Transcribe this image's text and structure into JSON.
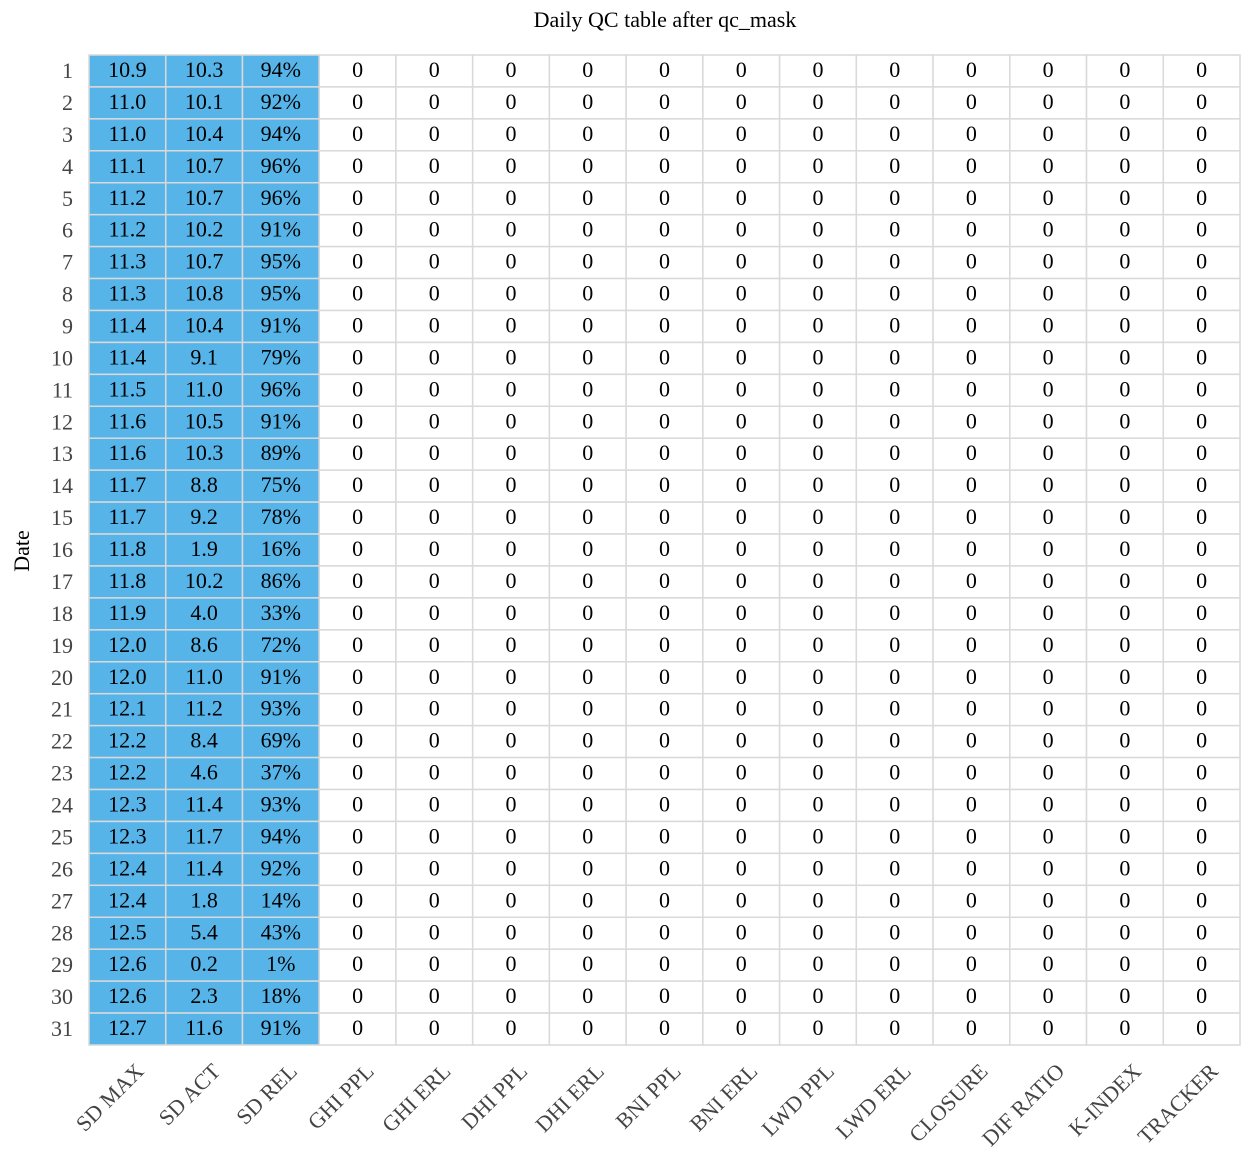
{
  "title": "Daily QC table after qc_mask",
  "y_label": "Date",
  "table": {
    "columns": [
      "SD MAX",
      "SD ACT",
      "SD REL",
      "GHI PPL",
      "GHI ERL",
      "DHI PPL",
      "DHI ERL",
      "BNI PPL",
      "BNI ERL",
      "LWD PPL",
      "LWD ERL",
      "CLOSURE",
      "DIF RATIO",
      "K-INDEX",
      "TRACKER"
    ],
    "rows": [
      {
        "label": 1,
        "cells": [
          "10.9",
          "10.3",
          "94%",
          0,
          0,
          0,
          0,
          0,
          0,
          0,
          0,
          0,
          0,
          0,
          0
        ]
      },
      {
        "label": 2,
        "cells": [
          "11.0",
          "10.1",
          "92%",
          0,
          0,
          0,
          0,
          0,
          0,
          0,
          0,
          0,
          0,
          0,
          0
        ]
      },
      {
        "label": 3,
        "cells": [
          "11.0",
          "10.4",
          "94%",
          0,
          0,
          0,
          0,
          0,
          0,
          0,
          0,
          0,
          0,
          0,
          0
        ]
      },
      {
        "label": 4,
        "cells": [
          "11.1",
          "10.7",
          "96%",
          0,
          0,
          0,
          0,
          0,
          0,
          0,
          0,
          0,
          0,
          0,
          0
        ]
      },
      {
        "label": 5,
        "cells": [
          "11.2",
          "10.7",
          "96%",
          0,
          0,
          0,
          0,
          0,
          0,
          0,
          0,
          0,
          0,
          0,
          0
        ]
      },
      {
        "label": 6,
        "cells": [
          "11.2",
          "10.2",
          "91%",
          0,
          0,
          0,
          0,
          0,
          0,
          0,
          0,
          0,
          0,
          0,
          0
        ]
      },
      {
        "label": 7,
        "cells": [
          "11.3",
          "10.7",
          "95%",
          0,
          0,
          0,
          0,
          0,
          0,
          0,
          0,
          0,
          0,
          0,
          0
        ]
      },
      {
        "label": 8,
        "cells": [
          "11.3",
          "10.8",
          "95%",
          0,
          0,
          0,
          0,
          0,
          0,
          0,
          0,
          0,
          0,
          0,
          0
        ]
      },
      {
        "label": 9,
        "cells": [
          "11.4",
          "10.4",
          "91%",
          0,
          0,
          0,
          0,
          0,
          0,
          0,
          0,
          0,
          0,
          0,
          0
        ]
      },
      {
        "label": 10,
        "cells": [
          "11.4",
          "9.1",
          "79%",
          0,
          0,
          0,
          0,
          0,
          0,
          0,
          0,
          0,
          0,
          0,
          0
        ]
      },
      {
        "label": 11,
        "cells": [
          "11.5",
          "11.0",
          "96%",
          0,
          0,
          0,
          0,
          0,
          0,
          0,
          0,
          0,
          0,
          0,
          0
        ]
      },
      {
        "label": 12,
        "cells": [
          "11.6",
          "10.5",
          "91%",
          0,
          0,
          0,
          0,
          0,
          0,
          0,
          0,
          0,
          0,
          0,
          0
        ]
      },
      {
        "label": 13,
        "cells": [
          "11.6",
          "10.3",
          "89%",
          0,
          0,
          0,
          0,
          0,
          0,
          0,
          0,
          0,
          0,
          0,
          0
        ]
      },
      {
        "label": 14,
        "cells": [
          "11.7",
          "8.8",
          "75%",
          0,
          0,
          0,
          0,
          0,
          0,
          0,
          0,
          0,
          0,
          0,
          0
        ]
      },
      {
        "label": 15,
        "cells": [
          "11.7",
          "9.2",
          "78%",
          0,
          0,
          0,
          0,
          0,
          0,
          0,
          0,
          0,
          0,
          0,
          0
        ]
      },
      {
        "label": 16,
        "cells": [
          "11.8",
          "1.9",
          "16%",
          0,
          0,
          0,
          0,
          0,
          0,
          0,
          0,
          0,
          0,
          0,
          0
        ]
      },
      {
        "label": 17,
        "cells": [
          "11.8",
          "10.2",
          "86%",
          0,
          0,
          0,
          0,
          0,
          0,
          0,
          0,
          0,
          0,
          0,
          0
        ]
      },
      {
        "label": 18,
        "cells": [
          "11.9",
          "4.0",
          "33%",
          0,
          0,
          0,
          0,
          0,
          0,
          0,
          0,
          0,
          0,
          0,
          0
        ]
      },
      {
        "label": 19,
        "cells": [
          "12.0",
          "8.6",
          "72%",
          0,
          0,
          0,
          0,
          0,
          0,
          0,
          0,
          0,
          0,
          0,
          0
        ]
      },
      {
        "label": 20,
        "cells": [
          "12.0",
          "11.0",
          "91%",
          0,
          0,
          0,
          0,
          0,
          0,
          0,
          0,
          0,
          0,
          0,
          0
        ]
      },
      {
        "label": 21,
        "cells": [
          "12.1",
          "11.2",
          "93%",
          0,
          0,
          0,
          0,
          0,
          0,
          0,
          0,
          0,
          0,
          0,
          0
        ]
      },
      {
        "label": 22,
        "cells": [
          "12.2",
          "8.4",
          "69%",
          0,
          0,
          0,
          0,
          0,
          0,
          0,
          0,
          0,
          0,
          0,
          0
        ]
      },
      {
        "label": 23,
        "cells": [
          "12.2",
          "4.6",
          "37%",
          0,
          0,
          0,
          0,
          0,
          0,
          0,
          0,
          0,
          0,
          0,
          0
        ]
      },
      {
        "label": 24,
        "cells": [
          "12.3",
          "11.4",
          "93%",
          0,
          0,
          0,
          0,
          0,
          0,
          0,
          0,
          0,
          0,
          0,
          0
        ]
      },
      {
        "label": 25,
        "cells": [
          "12.3",
          "11.7",
          "94%",
          0,
          0,
          0,
          0,
          0,
          0,
          0,
          0,
          0,
          0,
          0,
          0
        ]
      },
      {
        "label": 26,
        "cells": [
          "12.4",
          "11.4",
          "92%",
          0,
          0,
          0,
          0,
          0,
          0,
          0,
          0,
          0,
          0,
          0,
          0
        ]
      },
      {
        "label": 27,
        "cells": [
          "12.4",
          "1.8",
          "14%",
          0,
          0,
          0,
          0,
          0,
          0,
          0,
          0,
          0,
          0,
          0,
          0
        ]
      },
      {
        "label": 28,
        "cells": [
          "12.5",
          "5.4",
          "43%",
          0,
          0,
          0,
          0,
          0,
          0,
          0,
          0,
          0,
          0,
          0,
          0
        ]
      },
      {
        "label": 29,
        "cells": [
          "12.6",
          "0.2",
          "1%",
          0,
          0,
          0,
          0,
          0,
          0,
          0,
          0,
          0,
          0,
          0,
          0
        ]
      },
      {
        "label": 30,
        "cells": [
          "12.6",
          "2.3",
          "18%",
          0,
          0,
          0,
          0,
          0,
          0,
          0,
          0,
          0,
          0,
          0,
          0
        ]
      },
      {
        "label": 31,
        "cells": [
          "12.7",
          "11.6",
          "91%",
          0,
          0,
          0,
          0,
          0,
          0,
          0,
          0,
          0,
          0,
          0,
          0
        ]
      }
    ]
  }
}
